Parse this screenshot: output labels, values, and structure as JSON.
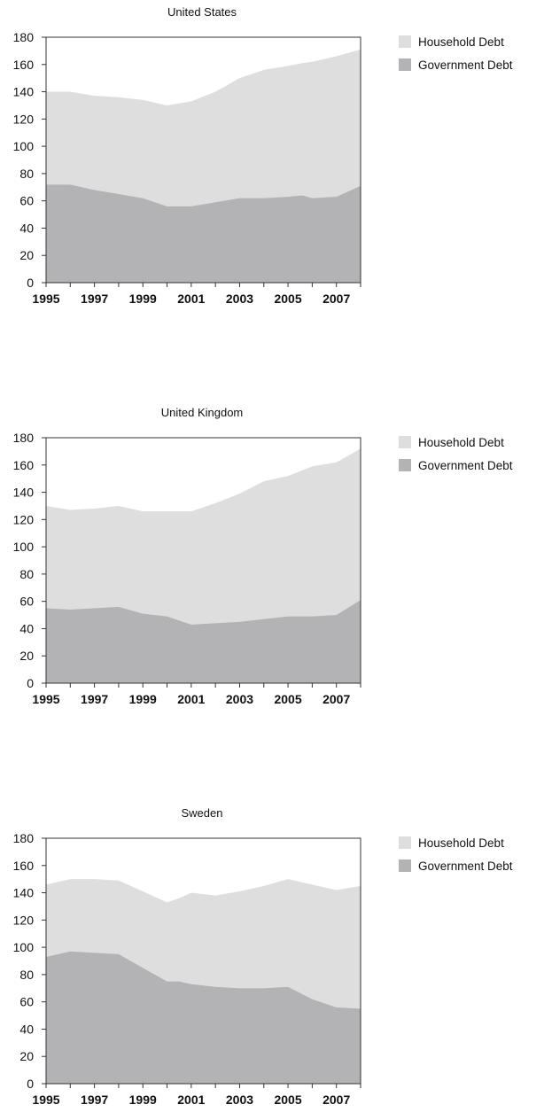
{
  "colors": {
    "household": "#dededf",
    "government": "#b3b3b5",
    "axis": "#333333"
  },
  "chart_data": [
    {
      "type": "area",
      "stacked": true,
      "title": "United States",
      "x": [
        1995,
        1996,
        1997,
        1998,
        1999,
        2000,
        2001,
        2002,
        2003,
        2004,
        2005,
        2005.6,
        2006,
        2007,
        2008
      ],
      "series": [
        {
          "name": "Government Debt",
          "values": [
            72,
            72,
            68,
            65,
            62,
            56,
            56,
            59,
            62,
            62,
            63,
            64,
            62,
            63,
            71
          ]
        },
        {
          "name": "Household Debt",
          "values": [
            68,
            68,
            69,
            71,
            72,
            74,
            77,
            81,
            88,
            94,
            96,
            97,
            100,
            103,
            100
          ]
        }
      ],
      "y_ticks": [
        "0",
        "20",
        "40",
        "60",
        "80",
        "100",
        "120",
        "140",
        "160",
        "180"
      ],
      "x_ticks": [
        "1995",
        "1997",
        "1999",
        "2001",
        "2003",
        "2005",
        "2007"
      ],
      "ylim": [
        0,
        180
      ],
      "xlim": [
        1995,
        2008
      ],
      "legend": "right",
      "grid": false
    },
    {
      "type": "area",
      "stacked": true,
      "title": "United Kingdom",
      "x": [
        1995,
        1996,
        1997,
        1998,
        1999,
        2000,
        2001,
        2002,
        2003,
        2004,
        2005,
        2006,
        2007,
        2008
      ],
      "series": [
        {
          "name": "Government Debt",
          "values": [
            55,
            54,
            55,
            56,
            51,
            49,
            43,
            44,
            45,
            47,
            49,
            49,
            50,
            61
          ]
        },
        {
          "name": "Household Debt",
          "values": [
            75,
            73,
            73,
            74,
            75,
            77,
            83,
            88,
            94,
            101,
            103,
            110,
            112,
            111
          ]
        }
      ],
      "y_ticks": [
        "0",
        "20",
        "40",
        "60",
        "80",
        "100",
        "120",
        "140",
        "160",
        "180"
      ],
      "x_ticks": [
        "1995",
        "1997",
        "1999",
        "2001",
        "2003",
        "2005",
        "2007"
      ],
      "ylim": [
        0,
        180
      ],
      "xlim": [
        1995,
        2008
      ],
      "legend": "right",
      "grid": false
    },
    {
      "type": "area",
      "stacked": true,
      "title": "Sweden",
      "x": [
        1995,
        1996,
        1997,
        1998,
        1999,
        2000,
        2000.5,
        2001,
        2002,
        2003,
        2004,
        2005,
        2006,
        2007,
        2008
      ],
      "series": [
        {
          "name": "Government Debt",
          "values": [
            93,
            97,
            96,
            95,
            85,
            75,
            75,
            73,
            71,
            70,
            70,
            71,
            62,
            56,
            55
          ]
        },
        {
          "name": "Household Debt",
          "values": [
            53,
            53,
            54,
            54,
            56,
            58,
            61,
            67,
            67,
            71,
            75,
            79,
            84,
            86,
            90
          ]
        }
      ],
      "y_ticks": [
        "0",
        "20",
        "40",
        "60",
        "80",
        "100",
        "120",
        "140",
        "160",
        "180"
      ],
      "x_ticks": [
        "1995",
        "1997",
        "1999",
        "2001",
        "2003",
        "2005",
        "2007"
      ],
      "ylim": [
        0,
        180
      ],
      "xlim": [
        1995,
        2008
      ],
      "legend": "right",
      "grid": false
    }
  ]
}
